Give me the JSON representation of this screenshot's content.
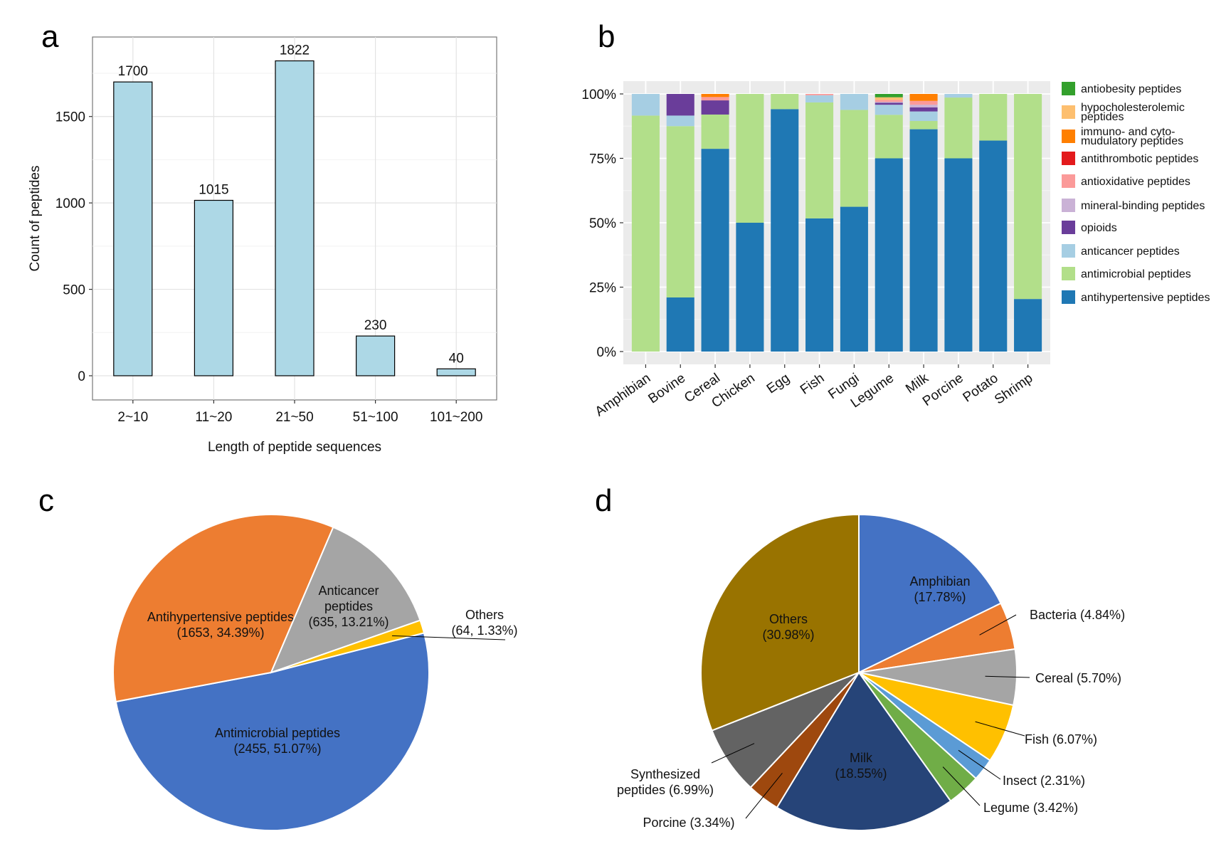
{
  "panels": {
    "a": "a",
    "b": "b",
    "c": "c",
    "d": "d"
  },
  "chart_data": [
    {
      "id": "a",
      "type": "bar",
      "title": "",
      "xlabel": "Length of peptide sequences",
      "ylabel": "Count of peptides",
      "categories": [
        "2~10",
        "11~20",
        "21~50",
        "51~100",
        "101~200"
      ],
      "values": [
        1700,
        1015,
        1822,
        230,
        40
      ],
      "data_labels": [
        "1700",
        "1015",
        "1822",
        "230",
        "40"
      ],
      "yticks": [
        0,
        500,
        1000,
        1500
      ],
      "ytick_labels": [
        "0",
        "500",
        "1000",
        "1500"
      ],
      "ylim": [
        -140,
        1960
      ],
      "grid": true,
      "bar_color": "#ADD8E6"
    },
    {
      "id": "b",
      "type": "bar",
      "stacked": true,
      "normalized": true,
      "title": "",
      "xlabel": "",
      "ylabel": "",
      "categories": [
        "Amphibian",
        "Bovine",
        "Cereal",
        "Chicken",
        "Egg",
        "Fish",
        "Fungi",
        "Legume",
        "Milk",
        "Porcine",
        "Potato",
        "Shrimp"
      ],
      "yticks": [
        0,
        25,
        50,
        75,
        100
      ],
      "ytick_labels": [
        "0%",
        "25%",
        "50%",
        "75%",
        "100%"
      ],
      "ylim": [
        0,
        100
      ],
      "grid": true,
      "legend_position": "right",
      "series": [
        {
          "name": "antihypertensive peptides",
          "color": "#1F78B4",
          "values": [
            0,
            21.0,
            78.7,
            50.0,
            94.1,
            51.7,
            56.2,
            75.0,
            86.3,
            75.0,
            81.9,
            20.4
          ]
        },
        {
          "name": "antimicrobial peptides",
          "color": "#B2DF8A",
          "values": [
            91.6,
            66.5,
            13.3,
            50.0,
            5.9,
            45.0,
            37.6,
            16.9,
            3.2,
            23.6,
            18.1,
            79.6
          ]
        },
        {
          "name": "anticancer peptides",
          "color": "#A6CEE3",
          "values": [
            8.4,
            4.1,
            0,
            0,
            0,
            2.8,
            6.2,
            3.9,
            3.7,
            1.4,
            0,
            0
          ]
        },
        {
          "name": "opioids",
          "color": "#6A3D9A",
          "values": [
            0,
            8.4,
            5.5,
            0,
            0,
            0,
            0,
            0.8,
            1.6,
            0,
            0,
            0
          ]
        },
        {
          "name": "mineral-binding peptides",
          "color": "#CAB2D6",
          "values": [
            0,
            0,
            0,
            0,
            0,
            0,
            0,
            0.3,
            1.0,
            0,
            0,
            0
          ]
        },
        {
          "name": "antioxidative peptides",
          "color": "#FB9A99",
          "values": [
            0,
            0,
            1.3,
            0,
            0,
            0.5,
            0,
            0.8,
            1.5,
            0,
            0,
            0
          ]
        },
        {
          "name": "antithrombotic peptides",
          "color": "#E31A1C",
          "values": [
            0,
            0,
            0,
            0,
            0,
            0,
            0,
            0,
            0,
            0,
            0,
            0
          ]
        },
        {
          "name": "immuno- and cyto-mudulatory peptides",
          "color": "#FF7F00",
          "values": [
            0,
            0,
            1.2,
            0,
            0,
            0,
            0,
            0,
            2.7,
            0,
            0,
            0
          ]
        },
        {
          "name": "hypocholesterolemic peptides",
          "color": "#FDBF6F",
          "values": [
            0,
            0,
            0,
            0,
            0,
            0,
            0,
            1.0,
            0,
            0,
            0,
            0
          ]
        },
        {
          "name": "antiobesity peptides",
          "color": "#33A02C",
          "values": [
            0,
            0,
            0,
            0,
            0,
            0,
            0,
            1.3,
            0,
            0,
            0,
            0
          ]
        }
      ],
      "legend": [
        {
          "lines": [
            "antiobesity peptides"
          ],
          "color": "#33A02C"
        },
        {
          "lines": [
            "hypocholesterolemic",
            "peptides"
          ],
          "color": "#FDBF6F"
        },
        {
          "lines": [
            "immuno- and cyto-",
            "mudulatory peptides"
          ],
          "color": "#FF7F00"
        },
        {
          "lines": [
            "antithrombotic peptides"
          ],
          "color": "#E31A1C"
        },
        {
          "lines": [
            "antioxidative peptides"
          ],
          "color": "#FB9A99"
        },
        {
          "lines": [
            "mineral-binding peptides"
          ],
          "color": "#CAB2D6"
        },
        {
          "lines": [
            "opioids"
          ],
          "color": "#6A3D9A"
        },
        {
          "lines": [
            "anticancer peptides"
          ],
          "color": "#A6CEE3"
        },
        {
          "lines": [
            "antimicrobial peptides"
          ],
          "color": "#B2DF8A"
        },
        {
          "lines": [
            "antihypertensive peptides"
          ],
          "color": "#1F78B4"
        }
      ]
    },
    {
      "id": "c",
      "type": "pie",
      "title": "",
      "slices": [
        {
          "name": "Antimicrobial peptides",
          "count": 2455,
          "percent": 51.07,
          "color": "#4472C4",
          "label": [
            "Antimicrobial peptides",
            "(2455, 51.07%)"
          ]
        },
        {
          "name": "Antihypertensive peptides",
          "count": 1653,
          "percent": 34.39,
          "color": "#ED7D31",
          "label": [
            "Antihypertensive peptides",
            "(1653, 34.39%)"
          ]
        },
        {
          "name": "Anticancer peptides",
          "count": 635,
          "percent": 13.21,
          "color": "#A5A5A5",
          "label": [
            "Anticancer",
            "peptides",
            "(635, 13.21%)"
          ]
        },
        {
          "name": "Others",
          "count": 64,
          "percent": 1.33,
          "color": "#FFC000",
          "label": [
            "Others",
            "(64, 1.33%)"
          ]
        }
      ]
    },
    {
      "id": "d",
      "type": "pie",
      "title": "",
      "slices": [
        {
          "name": "Amphibian",
          "percent": 17.78,
          "color": "#4472C4",
          "label": [
            "Amphibian",
            "(17.78%)"
          ]
        },
        {
          "name": "Bacteria",
          "percent": 4.84,
          "color": "#ED7D31",
          "label": [
            "Bacteria (4.84%)"
          ]
        },
        {
          "name": "Cereal",
          "percent": 5.7,
          "color": "#A5A5A5",
          "label": [
            "Cereal (5.70%)"
          ]
        },
        {
          "name": "Fish",
          "percent": 6.07,
          "color": "#FFC000",
          "label": [
            "Fish (6.07%)"
          ]
        },
        {
          "name": "Insect",
          "percent": 2.31,
          "color": "#5B9BD5",
          "label": [
            "Insect (2.31%)"
          ]
        },
        {
          "name": "Legume",
          "percent": 3.42,
          "color": "#70AD47",
          "label": [
            "Legume (3.42%)"
          ]
        },
        {
          "name": "Milk",
          "percent": 18.55,
          "color": "#264478",
          "label": [
            "Milk",
            "(18.55%)"
          ]
        },
        {
          "name": "Porcine",
          "percent": 3.34,
          "color": "#9E480E",
          "label": [
            "Porcine (3.34%)"
          ]
        },
        {
          "name": "Synthesized peptides",
          "percent": 6.99,
          "color": "#636363",
          "label": [
            "Synthesized",
            "peptides (6.99%)"
          ]
        },
        {
          "name": "Others",
          "percent": 30.98,
          "color": "#997300",
          "label": [
            "Others",
            "(30.98%)"
          ]
        }
      ]
    }
  ]
}
